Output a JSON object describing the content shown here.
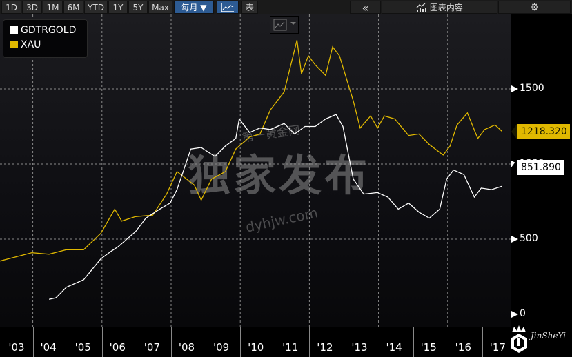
{
  "toolbar": {
    "range_buttons": [
      "1D",
      "3D",
      "1M",
      "6M",
      "YTD",
      "1Y",
      "5Y",
      "Max"
    ],
    "frequency": "每月 ▼",
    "chart_type_icon": "line-chart-icon",
    "table_label": "表",
    "collapse_icon": "«",
    "chart_content_label": "图表内容",
    "settings_icon": "⚙"
  },
  "legend": {
    "items": [
      {
        "label": "GDTRGOLD",
        "color": "#ffffff"
      },
      {
        "label": "XAU",
        "color": "#e0b800"
      }
    ]
  },
  "price_tags": {
    "xau": "1218.320",
    "gdtrgold": "851.890"
  },
  "watermark": {
    "main": "独家发布",
    "top": "第一黄金网",
    "url": "dyhjw.com",
    "logo": "JinSheYi"
  },
  "chart_data": {
    "type": "line",
    "title": "",
    "xlabel": "",
    "ylabel": "",
    "categories": [
      "'03",
      "'04",
      "'05",
      "'06",
      "'07",
      "'08",
      "'09",
      "'10",
      "'11",
      "'12",
      "'13",
      "'14",
      "'15",
      "'16",
      "'17"
    ],
    "ylim": [
      0,
      2000
    ],
    "yticks": [
      0,
      500,
      1000,
      1500
    ],
    "grid": true,
    "legend_position": "top-left",
    "series": [
      {
        "name": "XAU",
        "color": "#e0b800",
        "last_value": 1218.32,
        "x": [
          2003.0,
          2003.5,
          2004.0,
          2004.5,
          2005.0,
          2005.5,
          2006.0,
          2006.4,
          2006.6,
          2007.0,
          2007.5,
          2007.9,
          2008.2,
          2008.7,
          2008.9,
          2009.2,
          2009.6,
          2009.9,
          2010.3,
          2010.6,
          2010.9,
          2011.3,
          2011.67,
          2011.8,
          2012.0,
          2012.2,
          2012.5,
          2012.7,
          2012.9,
          2013.3,
          2013.5,
          2013.8,
          2014.0,
          2014.2,
          2014.5,
          2014.9,
          2015.2,
          2015.5,
          2015.9,
          2016.1,
          2016.3,
          2016.6,
          2016.9,
          2017.1,
          2017.4,
          2017.6
        ],
        "values": [
          350,
          380,
          410,
          400,
          430,
          430,
          540,
          700,
          620,
          650,
          660,
          800,
          950,
          860,
          760,
          900,
          950,
          1100,
          1180,
          1200,
          1360,
          1480,
          1825,
          1600,
          1720,
          1660,
          1590,
          1780,
          1720,
          1420,
          1240,
          1320,
          1240,
          1320,
          1300,
          1190,
          1200,
          1130,
          1060,
          1120,
          1260,
          1340,
          1170,
          1230,
          1260,
          1218
        ]
      },
      {
        "name": "GDTRGOLD",
        "color": "#ffffff",
        "last_value": 851.89,
        "x": [
          2004.5,
          2004.7,
          2005.0,
          2005.5,
          2006.0,
          2006.3,
          2006.5,
          2007.0,
          2007.3,
          2007.7,
          2008.0,
          2008.2,
          2008.6,
          2008.9,
          2009.3,
          2009.6,
          2009.9,
          2010.0,
          2010.3,
          2010.6,
          2010.9,
          2011.3,
          2011.6,
          2011.9,
          2012.2,
          2012.5,
          2012.8,
          2013.0,
          2013.3,
          2013.6,
          2014.0,
          2014.3,
          2014.6,
          2014.9,
          2015.2,
          2015.5,
          2015.8,
          2016.0,
          2016.2,
          2016.5,
          2016.8,
          2017.0,
          2017.3,
          2017.6
        ],
        "values": [
          100,
          110,
          180,
          230,
          370,
          420,
          450,
          550,
          640,
          700,
          740,
          830,
          1100,
          1110,
          1050,
          1120,
          1170,
          1300,
          1210,
          1240,
          1230,
          1270,
          1200,
          1250,
          1250,
          1300,
          1330,
          1250,
          900,
          800,
          810,
          780,
          700,
          740,
          680,
          640,
          700,
          900,
          960,
          930,
          780,
          840,
          830,
          852
        ]
      }
    ]
  }
}
